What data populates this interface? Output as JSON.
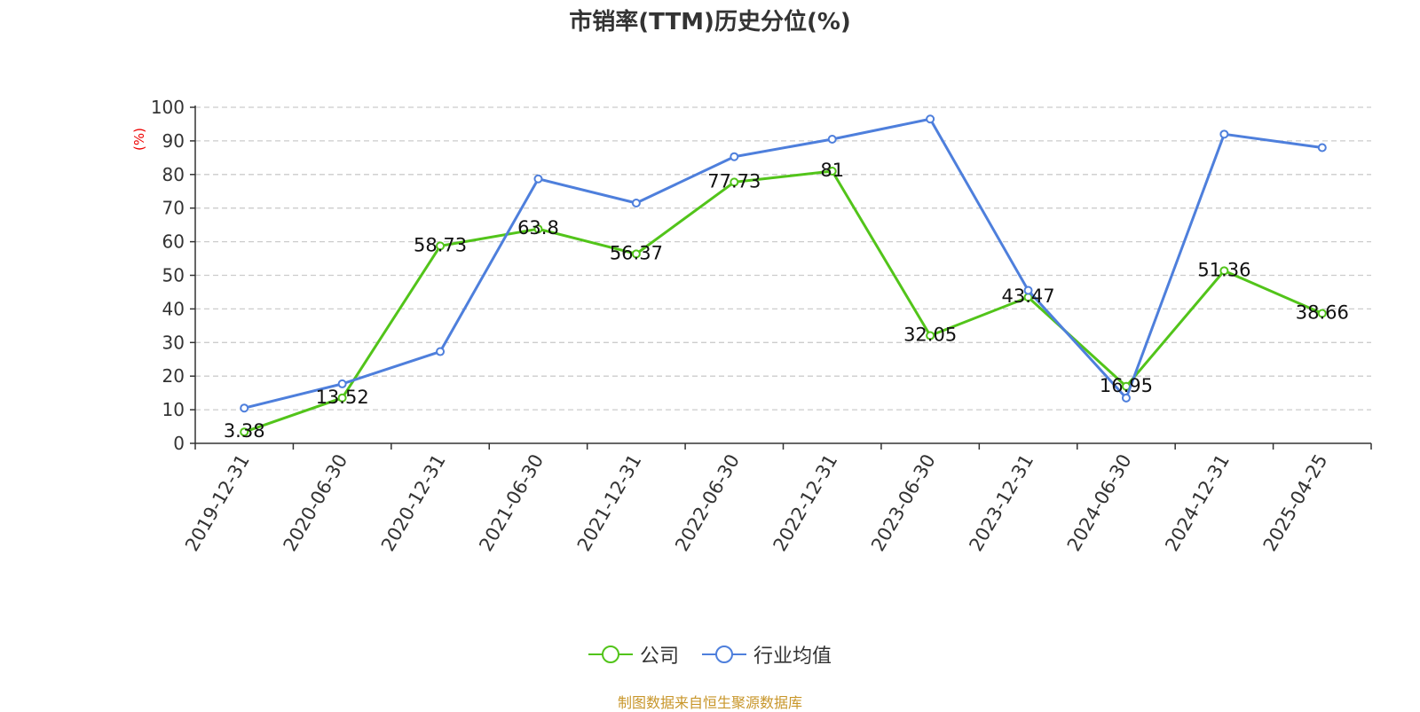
{
  "title": "市销率(TTM)历史分位(%)",
  "source_note": "制图数据来自恒生聚源数据库",
  "colors": {
    "company": "#52c41a",
    "industry": "#4e7fdc",
    "ylabel": "#ee0000",
    "grid": "#cccccc",
    "axis": "#333333"
  },
  "chart_data": {
    "type": "line",
    "title": "市销率(TTM)历史分位(%)",
    "ylabel": "(%)",
    "xlabel": "",
    "ylim": [
      0,
      100
    ],
    "yticks": [
      0,
      10,
      20,
      30,
      40,
      50,
      60,
      70,
      80,
      90,
      100
    ],
    "grid": true,
    "legend_position": "bottom",
    "categories": [
      "2019-12-31",
      "2020-06-30",
      "2020-12-31",
      "2021-06-30",
      "2021-12-31",
      "2022-06-30",
      "2022-12-31",
      "2023-06-30",
      "2023-12-31",
      "2024-06-30",
      "2024-12-31",
      "2025-04-25"
    ],
    "series": [
      {
        "name": "公司",
        "color": "#52c41a",
        "show_labels": true,
        "values": [
          3.38,
          13.52,
          58.73,
          63.8,
          56.37,
          77.73,
          81,
          32.05,
          43.47,
          16.95,
          51.36,
          38.66
        ]
      },
      {
        "name": "行业均值",
        "color": "#4e7fdc",
        "show_labels": false,
        "values": [
          10.5,
          17.7,
          27.3,
          78.7,
          71.5,
          85.3,
          90.5,
          96.5,
          45.5,
          13.5,
          92,
          88
        ]
      }
    ]
  }
}
